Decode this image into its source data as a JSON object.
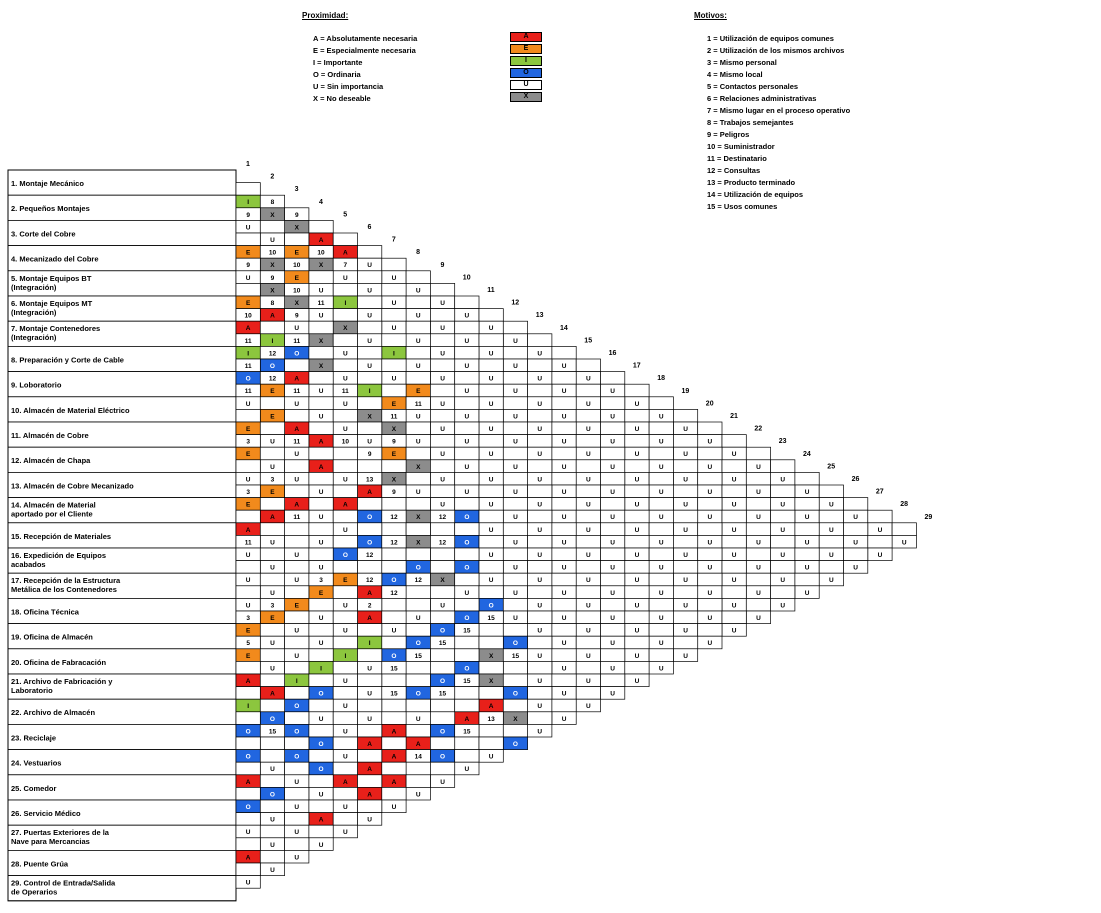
{
  "legend": {
    "proximity_title": "Proximidad:",
    "proximity": [
      {
        "code": "A",
        "text": "A = Absolutamente necesaria",
        "color": "#e8201a"
      },
      {
        "code": "E",
        "text": "E = Especialmente necesaria",
        "color": "#f28a1c"
      },
      {
        "code": "I",
        "text": "I = Importante",
        "color": "#8cc63e"
      },
      {
        "code": "O",
        "text": "O = Ordinaria",
        "color": "#2166e0"
      },
      {
        "code": "U",
        "text": "U = Sin importancia",
        "color": "#ffffff"
      },
      {
        "code": "X",
        "text": "X = No deseable",
        "color": "#8c8c8c"
      }
    ],
    "reasons_title": "Motivos:",
    "reasons": [
      "1 = Utilización de equipos comunes",
      "2 = Utilización de los mismos archivos",
      "3 = Mismo personal",
      "4 = Mismo local",
      "5 = Contactos personales",
      "6 = Relaciones administrativas",
      "7 = Mismo lugar en el proceso operativo",
      "8 = Trabajos semejantes",
      "9 = Peligros",
      "10 = Suministrador",
      "11 = Destinatario",
      "12 = Consultas",
      "13 = Producto terminado",
      "14 = Utilización de equipos",
      "15 = Usos comunes"
    ]
  },
  "areas": [
    [
      "1. Montaje Mecánico"
    ],
    [
      "2. Pequeños Montajes"
    ],
    [
      "3. Corte del Cobre"
    ],
    [
      "4. Mecanizado del Cobre"
    ],
    [
      "5. Montaje Equipos BT",
      "(Integración)"
    ],
    [
      "6. Montaje Equipos MT",
      "(Integración)"
    ],
    [
      "7. Montaje Contenedores",
      "(Integración)"
    ],
    [
      "8. Preparación y Corte de Cable"
    ],
    [
      "9. Loboratorio"
    ],
    [
      "10. Almacén de Material Eléctrico"
    ],
    [
      "11. Almacén de Cobre"
    ],
    [
      "12. Almacén de Chapa"
    ],
    [
      "13. Almacén de Cobre Mecanizado"
    ],
    [
      "14. Almacén de Material",
      "aportado por el Cliente"
    ],
    [
      "15. Recepción de Materiales"
    ],
    [
      "16. Expedición de Equipos",
      "acabados"
    ],
    [
      "17. Recepción de la Estructura",
      "Metálica de los Contenedores"
    ],
    [
      "18. Oficina Técnica"
    ],
    [
      "19. Oficina de Almacén"
    ],
    [
      "20. Oficina de Fabracación"
    ],
    [
      "21. Archivo de Fabricación y",
      "Laboratorio"
    ],
    [
      "22. Archivo de Almacén"
    ],
    [
      "23. Reciclaje"
    ],
    [
      "24. Vestuarios"
    ],
    [
      "25. Comedor"
    ],
    [
      "26. Servicio Médico"
    ],
    [
      "27. Puertas Exteriores de la",
      "Nave para Mercancias"
    ],
    [
      "28. Puente Grúa"
    ],
    [
      "29. Control de Entrada/Salida",
      "de Operarios"
    ]
  ],
  "matrix": {
    "rows": [
      [
        "I",
        "8 X",
        "X 9 U",
        "A",
        "A",
        "U",
        "U",
        "U",
        "U",
        "U",
        "U",
        "U",
        "U",
        "U",
        "U",
        "U",
        "U",
        "U",
        "U",
        "U",
        "U",
        "U",
        "U",
        "U",
        "U",
        "U",
        "U",
        "U"
      ],
      [
        "9 U",
        "U",
        "E",
        "10 X",
        "7 U",
        "U",
        "U",
        "U",
        "U",
        "U",
        "U",
        "U",
        "U",
        "U",
        "U",
        "U",
        "U",
        "U",
        "U",
        "U",
        "U",
        "U",
        "U",
        "U",
        "U",
        "U",
        "U"
      ],
      [
        "E",
        "10 X",
        "10 E",
        "U",
        "I",
        "U",
        "U",
        "U",
        "U",
        "U",
        "U",
        "U",
        "U",
        "U",
        "U",
        "U",
        "U",
        "U",
        "U",
        "U",
        "U",
        "U",
        "U",
        "U",
        "U",
        "U"
      ],
      [
        "U 9",
        "X 9",
        "X 10",
        "U 11",
        "X",
        "U",
        "I",
        "U",
        "U",
        "U",
        "U",
        "U",
        "U",
        "U",
        "U",
        "U",
        "U",
        "U",
        "U",
        "U",
        "U",
        "U",
        "U",
        "U",
        "U"
      ],
      [
        "E",
        "8 A",
        "U 9",
        "X",
        "U",
        "U",
        "U",
        "E",
        "U",
        "U",
        "U",
        "U",
        "U",
        "U",
        "U",
        "U",
        "U",
        "U",
        "U",
        "U",
        "U",
        "U",
        "U",
        "U"
      ],
      [
        "A 10",
        "I",
        "11 O",
        "X",
        "U",
        "I",
        "E",
        "11 U",
        "U",
        "U",
        "U",
        "U",
        "U",
        "U",
        "U",
        "U",
        "U",
        "U",
        "U",
        "U",
        "U",
        "U",
        "U"
      ],
      [
        "I 11",
        "O 12",
        "A",
        "U",
        "U 11",
        "X",
        "11 X",
        "U",
        "U",
        "U",
        "U",
        "U",
        "U",
        "U",
        "U",
        "U",
        "U",
        "U",
        "U",
        "U",
        "U",
        "U"
      ],
      [
        "11 O",
        "12 E",
        "11 U",
        "U",
        "U",
        "U",
        "E 9",
        "X",
        "U",
        "U",
        "U",
        "U",
        "U",
        "U",
        "U",
        "U",
        "U",
        "U",
        "U",
        "U",
        "U"
      ],
      [
        "U 11",
        "E",
        "A",
        "A",
        "10",
        "9",
        "X",
        "U",
        "U",
        "O",
        "U",
        "U",
        "U",
        "U",
        "U",
        "U",
        "U",
        "U",
        "U",
        "U"
      ],
      [
        "E",
        "U",
        "U 11",
        "A",
        "U",
        "A 13",
        "9",
        "X",
        "12",
        "O",
        "U",
        "U",
        "U",
        "U",
        "U",
        "U",
        "U",
        "U",
        "U"
      ],
      [
        "3 E",
        "U",
        "U",
        "U",
        "A",
        "O",
        "12",
        "X",
        "12",
        "O",
        "U",
        "U",
        "U",
        "U",
        "U",
        "U",
        "U",
        "U"
      ],
      [
        "U",
        "E 3",
        "A",
        "U",
        "U",
        "O",
        "12",
        "O",
        "X",
        "U",
        "O",
        "U",
        "U",
        "U",
        "U",
        "U",
        "U"
      ],
      [
        "E 3",
        "A",
        "11",
        "U",
        "O",
        "12",
        "O",
        "12",
        "U",
        "O",
        "15",
        "O",
        "U",
        "U",
        "U",
        "U"
      ],
      [
        "A",
        "U",
        "U",
        "U",
        "E",
        "A 12",
        "12",
        "U",
        "O",
        "15",
        "X",
        "15",
        "U",
        "U",
        "U"
      ],
      [
        "11 U",
        "U",
        "U",
        "E 3",
        "U",
        "2 A",
        "U",
        "O",
        "15",
        "O",
        "X",
        "O",
        "U",
        "U"
      ],
      [
        "U",
        "U",
        "E",
        "U",
        "U",
        "I",
        "O",
        "15",
        "O",
        "15",
        "A",
        "X",
        "U"
      ],
      [
        "U",
        "E 3",
        "U",
        "U",
        "I",
        "U",
        "15",
        "O",
        "15",
        "A",
        "13",
        "O"
      ],
      [
        "E 3",
        "U",
        "U",
        "I",
        "U",
        "U",
        "15",
        "U",
        "O",
        "15",
        "U"
      ],
      [
        "5 E",
        "U",
        "I",
        "O",
        "U",
        "U",
        "A",
        "A",
        "O",
        "U"
      ],
      [
        "A",
        "A",
        "O",
        "U",
        "U",
        "A",
        "A",
        "14",
        "U"
      ],
      [
        "I",
        "O",
        "O",
        "O",
        "U",
        "A",
        "A",
        "U"
      ],
      [
        "O",
        "15",
        "O",
        "O",
        "A",
        "A",
        "U"
      ],
      [
        "O",
        "U",
        "U",
        "U",
        "U",
        "U"
      ],
      [
        "A",
        "O",
        "U",
        "A",
        "U"
      ],
      [
        "O",
        "U",
        "U",
        "U"
      ],
      [
        "U",
        "U",
        "U"
      ],
      [
        "A",
        "U"
      ],
      [
        "U"
      ]
    ]
  }
}
